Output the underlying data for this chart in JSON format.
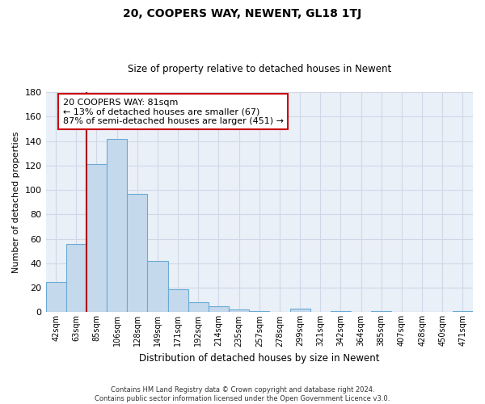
{
  "title": "20, COOPERS WAY, NEWENT, GL18 1TJ",
  "subtitle": "Size of property relative to detached houses in Newent",
  "xlabel": "Distribution of detached houses by size in Newent",
  "ylabel": "Number of detached properties",
  "bar_labels": [
    "42sqm",
    "63sqm",
    "85sqm",
    "106sqm",
    "128sqm",
    "149sqm",
    "171sqm",
    "192sqm",
    "214sqm",
    "235sqm",
    "257sqm",
    "278sqm",
    "299sqm",
    "321sqm",
    "342sqm",
    "364sqm",
    "385sqm",
    "407sqm",
    "428sqm",
    "450sqm",
    "471sqm"
  ],
  "bar_values": [
    25,
    56,
    121,
    142,
    97,
    42,
    19,
    8,
    5,
    2,
    1,
    0,
    3,
    0,
    1,
    0,
    1,
    0,
    0,
    0,
    1
  ],
  "bar_color": "#c5d9ed",
  "bar_edge_color": "#6aaad4",
  "highlight_line_color": "#aa0000",
  "ylim": [
    0,
    180
  ],
  "yticks": [
    0,
    20,
    40,
    60,
    80,
    100,
    120,
    140,
    160,
    180
  ],
  "annotation_text": "20 COOPERS WAY: 81sqm\n← 13% of detached houses are smaller (67)\n87% of semi-detached houses are larger (451) →",
  "annotation_box_edge": "#cc0000",
  "footer_line1": "Contains HM Land Registry data © Crown copyright and database right 2024.",
  "footer_line2": "Contains public sector information licensed under the Open Government Licence v3.0.",
  "background_color": "#ffffff",
  "grid_color": "#d0d8e8"
}
